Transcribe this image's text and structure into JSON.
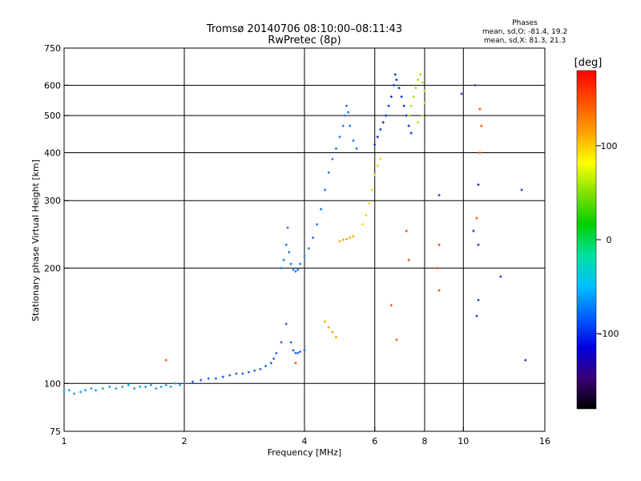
{
  "header": {
    "title": "Tromsø 20140706 08:10:00–08:11:43",
    "subtitle": "RwPretec (8p)",
    "phase_title": "Phases",
    "phase_line1": "mean, sd,O: -81.4, 19.2",
    "phase_line2": "mean, sd,X: 81.3, 21.3"
  },
  "chart_data": {
    "type": "scatter",
    "xlabel": "Frequency [MHz]",
    "ylabel": "Stationary phase Virtual Height [km]",
    "xscale": "log",
    "yscale": "log",
    "xlim": [
      1,
      16
    ],
    "ylim": [
      75,
      750
    ],
    "xticks": [
      1,
      2,
      4,
      6,
      8,
      10,
      16
    ],
    "xtick_labels": [
      "1",
      "2",
      "4",
      "6",
      "8",
      "10",
      "16"
    ],
    "yticks": [
      75,
      100,
      200,
      300,
      400,
      500,
      600,
      750
    ],
    "ytick_labels": [
      "75",
      "100",
      "200",
      "300",
      "400",
      "500",
      "600",
      "750"
    ],
    "x_gridlines": [
      2,
      4,
      6,
      8,
      10
    ],
    "y_gridlines": [
      100,
      200,
      300,
      400,
      500,
      600
    ],
    "grid": true,
    "colorbar": {
      "label": "[deg]",
      "range": [
        -180,
        180
      ],
      "ticks": [
        100,
        0,
        -100
      ],
      "tick_labels": [
        "100",
        "0",
        "-100"
      ],
      "colors": [
        "#000000",
        "#3a0078",
        "#0000dc",
        "#0060ff",
        "#00c0ff",
        "#00e0a0",
        "#00d000",
        "#80e000",
        "#ffff00",
        "#ffa000",
        "#ff5000",
        "#ff0000"
      ]
    },
    "series": [
      {
        "color": "#1ea0e8",
        "points": [
          [
            1.0,
            95
          ],
          [
            1.03,
            96
          ],
          [
            1.06,
            94
          ],
          [
            1.1,
            95
          ],
          [
            1.13,
            96
          ],
          [
            1.17,
            97
          ],
          [
            1.2,
            96
          ],
          [
            1.25,
            97
          ],
          [
            1.3,
            98
          ],
          [
            1.35,
            97
          ],
          [
            1.4,
            98
          ],
          [
            1.45,
            99
          ],
          [
            1.5,
            97
          ],
          [
            1.55,
            98
          ],
          [
            1.6,
            98
          ],
          [
            1.65,
            99
          ],
          [
            1.7,
            97
          ],
          [
            1.75,
            98
          ],
          [
            1.8,
            99
          ],
          [
            1.85,
            98
          ],
          [
            1.9,
            100
          ],
          [
            1.95,
            99
          ]
        ]
      },
      {
        "color": "#1e64e6",
        "points": [
          [
            2.0,
            100
          ],
          [
            2.1,
            101
          ],
          [
            2.2,
            102
          ],
          [
            2.3,
            103
          ],
          [
            2.4,
            103
          ],
          [
            2.5,
            104
          ],
          [
            2.6,
            105
          ],
          [
            2.7,
            106
          ],
          [
            2.8,
            106
          ],
          [
            2.9,
            107
          ],
          [
            3.0,
            108
          ],
          [
            3.1,
            109
          ],
          [
            3.2,
            111
          ],
          [
            3.3,
            113
          ],
          [
            3.35,
            116
          ],
          [
            3.4,
            120
          ],
          [
            3.5,
            128
          ],
          [
            3.6,
            143
          ],
          [
            3.7,
            128
          ],
          [
            3.75,
            122
          ],
          [
            3.8,
            120
          ],
          [
            3.85,
            120
          ],
          [
            3.9,
            121
          ],
          [
            4.0,
            122
          ]
        ]
      },
      {
        "color": "#1e78f0",
        "points": [
          [
            3.5,
            200
          ],
          [
            3.55,
            210
          ],
          [
            3.6,
            230
          ],
          [
            3.63,
            255
          ],
          [
            3.66,
            220
          ],
          [
            3.7,
            205
          ],
          [
            3.75,
            198
          ],
          [
            3.8,
            196
          ],
          [
            3.85,
            198
          ],
          [
            3.9,
            205
          ],
          [
            4.0,
            215
          ],
          [
            4.1,
            225
          ],
          [
            4.2,
            240
          ],
          [
            4.3,
            260
          ],
          [
            4.4,
            285
          ],
          [
            4.5,
            320
          ],
          [
            4.6,
            355
          ],
          [
            4.7,
            385
          ],
          [
            4.8,
            410
          ],
          [
            4.9,
            440
          ],
          [
            5.0,
            470
          ],
          [
            5.05,
            500
          ],
          [
            5.1,
            530
          ],
          [
            5.15,
            510
          ],
          [
            5.2,
            470
          ],
          [
            5.3,
            430
          ],
          [
            5.4,
            410
          ]
        ]
      },
      {
        "color": "#0a32dc",
        "points": [
          [
            6.0,
            420
          ],
          [
            6.1,
            440
          ],
          [
            6.2,
            460
          ],
          [
            6.3,
            480
          ],
          [
            6.4,
            500
          ],
          [
            6.5,
            530
          ],
          [
            6.6,
            560
          ],
          [
            6.7,
            600
          ],
          [
            6.75,
            640
          ],
          [
            6.8,
            620
          ],
          [
            6.9,
            590
          ],
          [
            7.0,
            560
          ],
          [
            7.1,
            530
          ],
          [
            7.2,
            500
          ],
          [
            7.3,
            470
          ],
          [
            7.4,
            450
          ]
        ]
      },
      {
        "color": "#a0e614",
        "points": [
          [
            7.3,
            500
          ],
          [
            7.4,
            530
          ],
          [
            7.5,
            560
          ],
          [
            7.6,
            590
          ],
          [
            7.7,
            620
          ],
          [
            7.8,
            640
          ],
          [
            7.9,
            610
          ],
          [
            8.0,
            580
          ],
          [
            8.0,
            540
          ],
          [
            7.9,
            500
          ],
          [
            7.7,
            480
          ]
        ]
      },
      {
        "color": "#ffd200",
        "points": [
          [
            5.6,
            260
          ],
          [
            5.7,
            275
          ],
          [
            5.8,
            295
          ],
          [
            5.9,
            320
          ],
          [
            6.0,
            350
          ],
          [
            6.1,
            370
          ],
          [
            6.2,
            385
          ]
        ]
      },
      {
        "color": "#ffa000",
        "points": [
          [
            4.9,
            235
          ],
          [
            5.0,
            237
          ],
          [
            5.1,
            238
          ],
          [
            5.2,
            240
          ],
          [
            5.3,
            242
          ],
          [
            4.5,
            145
          ],
          [
            4.6,
            140
          ],
          [
            4.7,
            136
          ],
          [
            4.8,
            132
          ]
        ]
      },
      {
        "color": "#ff5000",
        "points": [
          [
            11.0,
            520
          ],
          [
            11.1,
            470
          ],
          [
            11.0,
            400
          ],
          [
            10.9,
            330
          ],
          [
            10.8,
            270
          ],
          [
            8.7,
            230
          ],
          [
            8.6,
            200
          ],
          [
            8.7,
            175
          ],
          [
            7.2,
            250
          ],
          [
            7.3,
            210
          ],
          [
            6.6,
            160
          ],
          [
            6.8,
            130
          ],
          [
            1.8,
            115
          ],
          [
            3.8,
            113
          ]
        ]
      },
      {
        "color": "#283cc8",
        "points": [
          [
            10.7,
            600
          ],
          [
            9.9,
            570
          ],
          [
            10.9,
            330
          ],
          [
            10.6,
            250
          ],
          [
            10.9,
            230
          ],
          [
            10.9,
            165
          ],
          [
            10.8,
            150
          ],
          [
            8.7,
            310
          ],
          [
            14.0,
            320
          ],
          [
            14.3,
            115
          ],
          [
            12.4,
            190
          ]
        ]
      }
    ]
  }
}
